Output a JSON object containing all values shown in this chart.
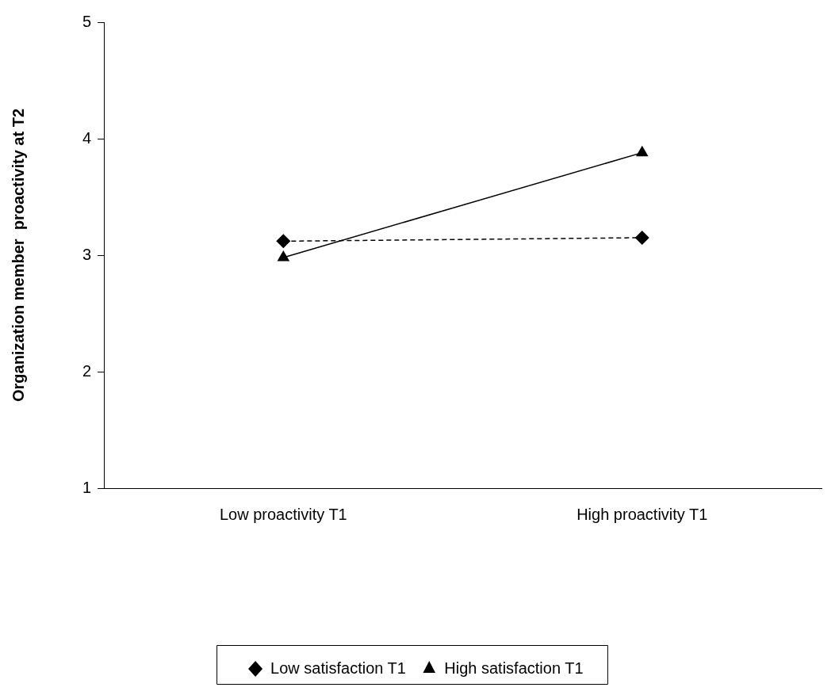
{
  "chart_data": {
    "type": "line",
    "ylabel": "Organization member  proactivity at T2",
    "categories": [
      "Low proactivity T1",
      "High proactivity T1"
    ],
    "series": [
      {
        "name": "Low satisfaction T1",
        "color": "#000000",
        "values": [
          3.12,
          3.15
        ],
        "marker": "diamond",
        "line_style": "dashed"
      },
      {
        "name": "High satisfaction T1",
        "color": "#000000",
        "values": [
          2.98,
          3.88
        ],
        "marker": "triangle",
        "line_style": "solid"
      }
    ],
    "ylim": [
      1,
      5
    ],
    "yticks": [
      1,
      2,
      3,
      4,
      5
    ],
    "grid": false,
    "legend": "bottom"
  }
}
